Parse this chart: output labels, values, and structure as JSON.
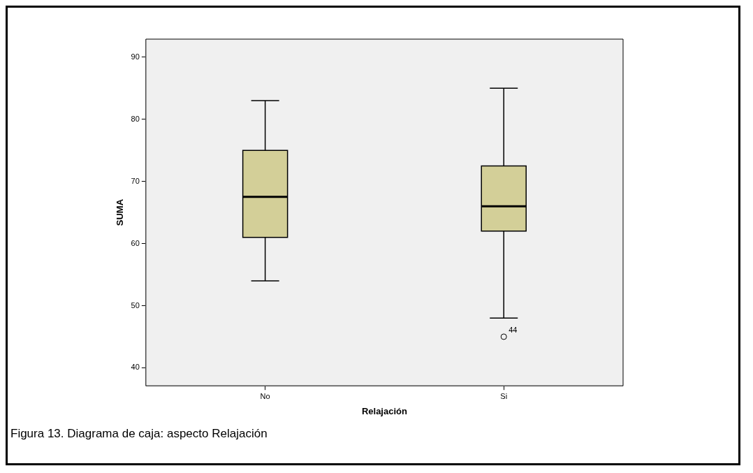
{
  "chart_data": {
    "type": "box",
    "xlabel": "Relajación",
    "ylabel": "SUMA",
    "categories": [
      "No",
      "Si"
    ],
    "boxes": [
      {
        "low": 54,
        "q1": 61,
        "median": 67.5,
        "q3": 75,
        "high": 83
      },
      {
        "low": 48,
        "q1": 62,
        "median": 66,
        "q3": 72.5,
        "high": 85,
        "outliers": [
          45
        ]
      }
    ],
    "color": "#d3cf98",
    "ylim": [
      37.1,
      92.9
    ],
    "yticks": [
      40,
      50,
      60,
      70,
      80,
      90
    ],
    "grid": false,
    "legend": false,
    "annotations": [
      "44",
      "Figura 13. Diagrama de caja: aspecto Relajación"
    ]
  }
}
